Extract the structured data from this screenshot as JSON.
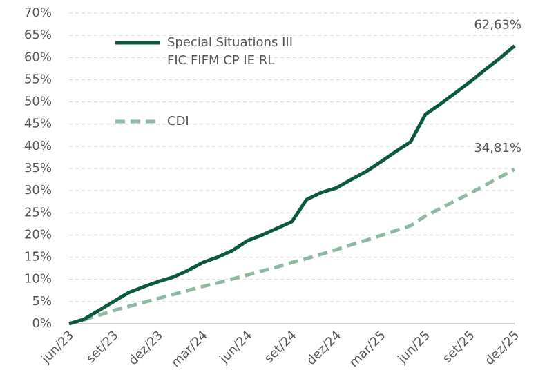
{
  "chart_data": {
    "type": "line",
    "categories": [
      "jun/23",
      null,
      null,
      "set/23",
      null,
      null,
      "dez/23",
      null,
      null,
      "mar/24",
      null,
      null,
      "jun/24",
      null,
      null,
      "set/24",
      null,
      null,
      "dez/24",
      null,
      null,
      "mar/25",
      null,
      null,
      "jun/25",
      null,
      null,
      "set/25",
      null,
      null,
      "dez/25"
    ],
    "series": [
      {
        "name": "Special Situations III FIC FIFM CP IE RL",
        "color": "#0b5a3f",
        "dash": false,
        "values": [
          0,
          1,
          3,
          5,
          7,
          8.3,
          9.5,
          10.5,
          12,
          13.8,
          15,
          16.5,
          18.7,
          20,
          21.5,
          23,
          28,
          29.6,
          30.6,
          32.5,
          34.3,
          36.5,
          38.8,
          41,
          47.2,
          49.5,
          52,
          54.5,
          57.2,
          59.8,
          62.63
        ],
        "value_labels": [
          null,
          null,
          null,
          null,
          null,
          null,
          null,
          null,
          null,
          null,
          null,
          null,
          null,
          null,
          null,
          null,
          null,
          null,
          null,
          null,
          null,
          null,
          null,
          null,
          null,
          null,
          null,
          null,
          null,
          null,
          "62,63%"
        ]
      },
      {
        "name": "CDI",
        "color": "#8fb9a0",
        "dash": true,
        "values": [
          0,
          0.9,
          1.9,
          3,
          3.9,
          4.8,
          5.7,
          6.6,
          7.5,
          8.4,
          9.2,
          10.1,
          11,
          11.9,
          12.8,
          13.8,
          14.7,
          15.7,
          16.7,
          17.8,
          18.8,
          19.9,
          21,
          22.1,
          24.3,
          26,
          27.7,
          29.4,
          31.2,
          33,
          34.81
        ],
        "value_labels": [
          null,
          null,
          null,
          null,
          null,
          null,
          null,
          null,
          null,
          null,
          null,
          null,
          null,
          null,
          null,
          null,
          null,
          null,
          null,
          null,
          null,
          null,
          null,
          null,
          null,
          null,
          null,
          null,
          null,
          null,
          "34,81%"
        ]
      }
    ],
    "ylim": [
      0,
      70
    ],
    "yticks": [
      {
        "value": 0,
        "label": "0%"
      },
      {
        "value": 5,
        "label": "5%"
      },
      {
        "value": 10,
        "label": "10%"
      },
      {
        "value": 15,
        "label": "15%"
      },
      {
        "value": 20,
        "label": "20%"
      },
      {
        "value": 25,
        "label": "25%"
      },
      {
        "value": 30,
        "label": "30%"
      },
      {
        "value": 35,
        "label": "35%"
      },
      {
        "value": 40,
        "label": "40%"
      },
      {
        "value": 45,
        "label": "45%"
      },
      {
        "value": 50,
        "label": "50%"
      },
      {
        "value": 55,
        "label": "55%"
      },
      {
        "value": 60,
        "label": "60%"
      },
      {
        "value": 65,
        "label": "65%"
      },
      {
        "value": 70,
        "label": "70%"
      }
    ],
    "grid": true,
    "legend": "top-left"
  }
}
